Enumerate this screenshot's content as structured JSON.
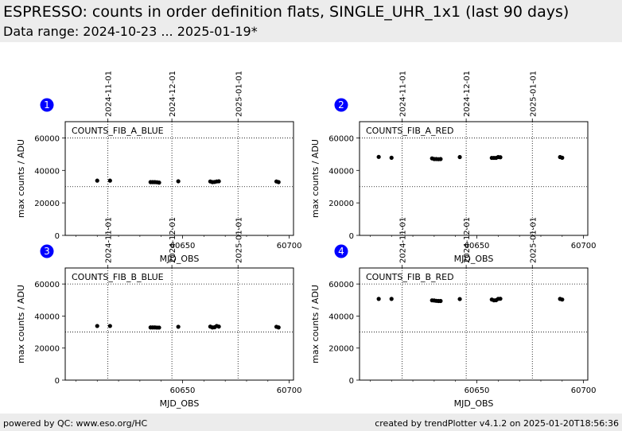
{
  "header": {
    "title": "ESPRESSO: counts in order definition flats, SINGLE_UHR_1x1 (last 90 days)",
    "subtitle": "Data range: 2024-10-23 ... 2025-01-19*"
  },
  "footer": {
    "left": "powered by QC: www.eso.org/HC",
    "right": "created by trendPlotter v4.1.2 on 2025-01-20T18:56:36"
  },
  "colors": {
    "marker": "#000000",
    "badge": "#0000ff",
    "header_bg": "#ececec"
  },
  "chart_data": [
    {
      "type": "scatter",
      "panel": "1",
      "series_label": "COUNTS_FIB_A_BLUE",
      "xlabel": "MJD_OBS",
      "ylabel": "max counts / ADU",
      "xlim": [
        60595,
        60702
      ],
      "ylim": [
        0,
        70000
      ],
      "xticks": [
        60650,
        60700
      ],
      "yticks": [
        0,
        20000,
        40000,
        60000
      ],
      "top_date_ticks": [
        {
          "x": 60615,
          "label": "2024-11-01"
        },
        {
          "x": 60645,
          "label": "2024-12-01"
        },
        {
          "x": 60676,
          "label": "2025-01-01"
        }
      ],
      "hlines": [
        30000,
        60000
      ],
      "x": [
        60610,
        60616,
        60635,
        60636,
        60637,
        60638,
        60639,
        60648,
        60663,
        60664,
        60665,
        60666,
        60667,
        60694,
        60695
      ],
      "y": [
        33700,
        33700,
        32800,
        32800,
        32800,
        32700,
        32500,
        33300,
        33200,
        32800,
        32900,
        33200,
        33300,
        33200,
        32800
      ]
    },
    {
      "type": "scatter",
      "panel": "2",
      "series_label": "COUNTS_FIB_A_RED",
      "xlabel": "MJD_OBS",
      "ylabel": "max counts / ADU",
      "xlim": [
        60595,
        60702
      ],
      "ylim": [
        0,
        70000
      ],
      "xticks": [
        60650,
        60700
      ],
      "yticks": [
        0,
        20000,
        40000,
        60000
      ],
      "top_date_ticks": [
        {
          "x": 60615,
          "label": "2024-11-01"
        },
        {
          "x": 60645,
          "label": "2024-12-01"
        },
        {
          "x": 60676,
          "label": "2025-01-01"
        }
      ],
      "hlines": [
        30000,
        60000
      ],
      "x": [
        60604,
        60610,
        60629,
        60630,
        60631,
        60632,
        60633,
        60642,
        60657,
        60658,
        60659,
        60660,
        60661,
        60689,
        60690
      ],
      "y": [
        48300,
        47800,
        47400,
        47000,
        47000,
        46900,
        47000,
        48200,
        47700,
        47700,
        47700,
        48200,
        48100,
        48200,
        47800
      ]
    },
    {
      "type": "scatter",
      "panel": "3",
      "series_label": "COUNTS_FIB_B_BLUE",
      "xlabel": "MJD_OBS",
      "ylabel": "max counts / ADU",
      "xlim": [
        60595,
        60702
      ],
      "ylim": [
        0,
        70000
      ],
      "xticks": [
        60650,
        60700
      ],
      "yticks": [
        0,
        20000,
        40000,
        60000
      ],
      "top_date_ticks": [
        {
          "x": 60615,
          "label": "2024-11-01"
        },
        {
          "x": 60645,
          "label": "2024-12-01"
        },
        {
          "x": 60676,
          "label": "2025-01-01"
        }
      ],
      "hlines": [
        30000,
        60000
      ],
      "x": [
        60610,
        60616,
        60635,
        60636,
        60637,
        60638,
        60639,
        60648,
        60663,
        60664,
        60665,
        60666,
        60667,
        60694,
        60695
      ],
      "y": [
        33800,
        33800,
        32900,
        32900,
        32900,
        32800,
        32800,
        33300,
        33400,
        32900,
        33000,
        33800,
        33400,
        33300,
        32900
      ]
    },
    {
      "type": "scatter",
      "panel": "4",
      "series_label": "COUNTS_FIB_B_RED",
      "xlabel": "MJD_OBS",
      "ylabel": "max counts / ADU",
      "xlim": [
        60595,
        60702
      ],
      "ylim": [
        0,
        70000
      ],
      "xticks": [
        60650,
        60700
      ],
      "yticks": [
        0,
        20000,
        40000,
        60000
      ],
      "top_date_ticks": [
        {
          "x": 60615,
          "label": "2024-11-01"
        },
        {
          "x": 60645,
          "label": "2024-12-01"
        },
        {
          "x": 60676,
          "label": "2025-01-01"
        }
      ],
      "hlines": [
        30000,
        60000
      ],
      "x": [
        60604,
        60610,
        60629,
        60630,
        60631,
        60632,
        60633,
        60642,
        60657,
        60658,
        60659,
        60660,
        60661,
        60689,
        60690
      ],
      "y": [
        50700,
        50700,
        49800,
        49700,
        49500,
        49400,
        49400,
        50600,
        50300,
        49800,
        49900,
        50700,
        50800,
        50700,
        50300
      ]
    }
  ]
}
